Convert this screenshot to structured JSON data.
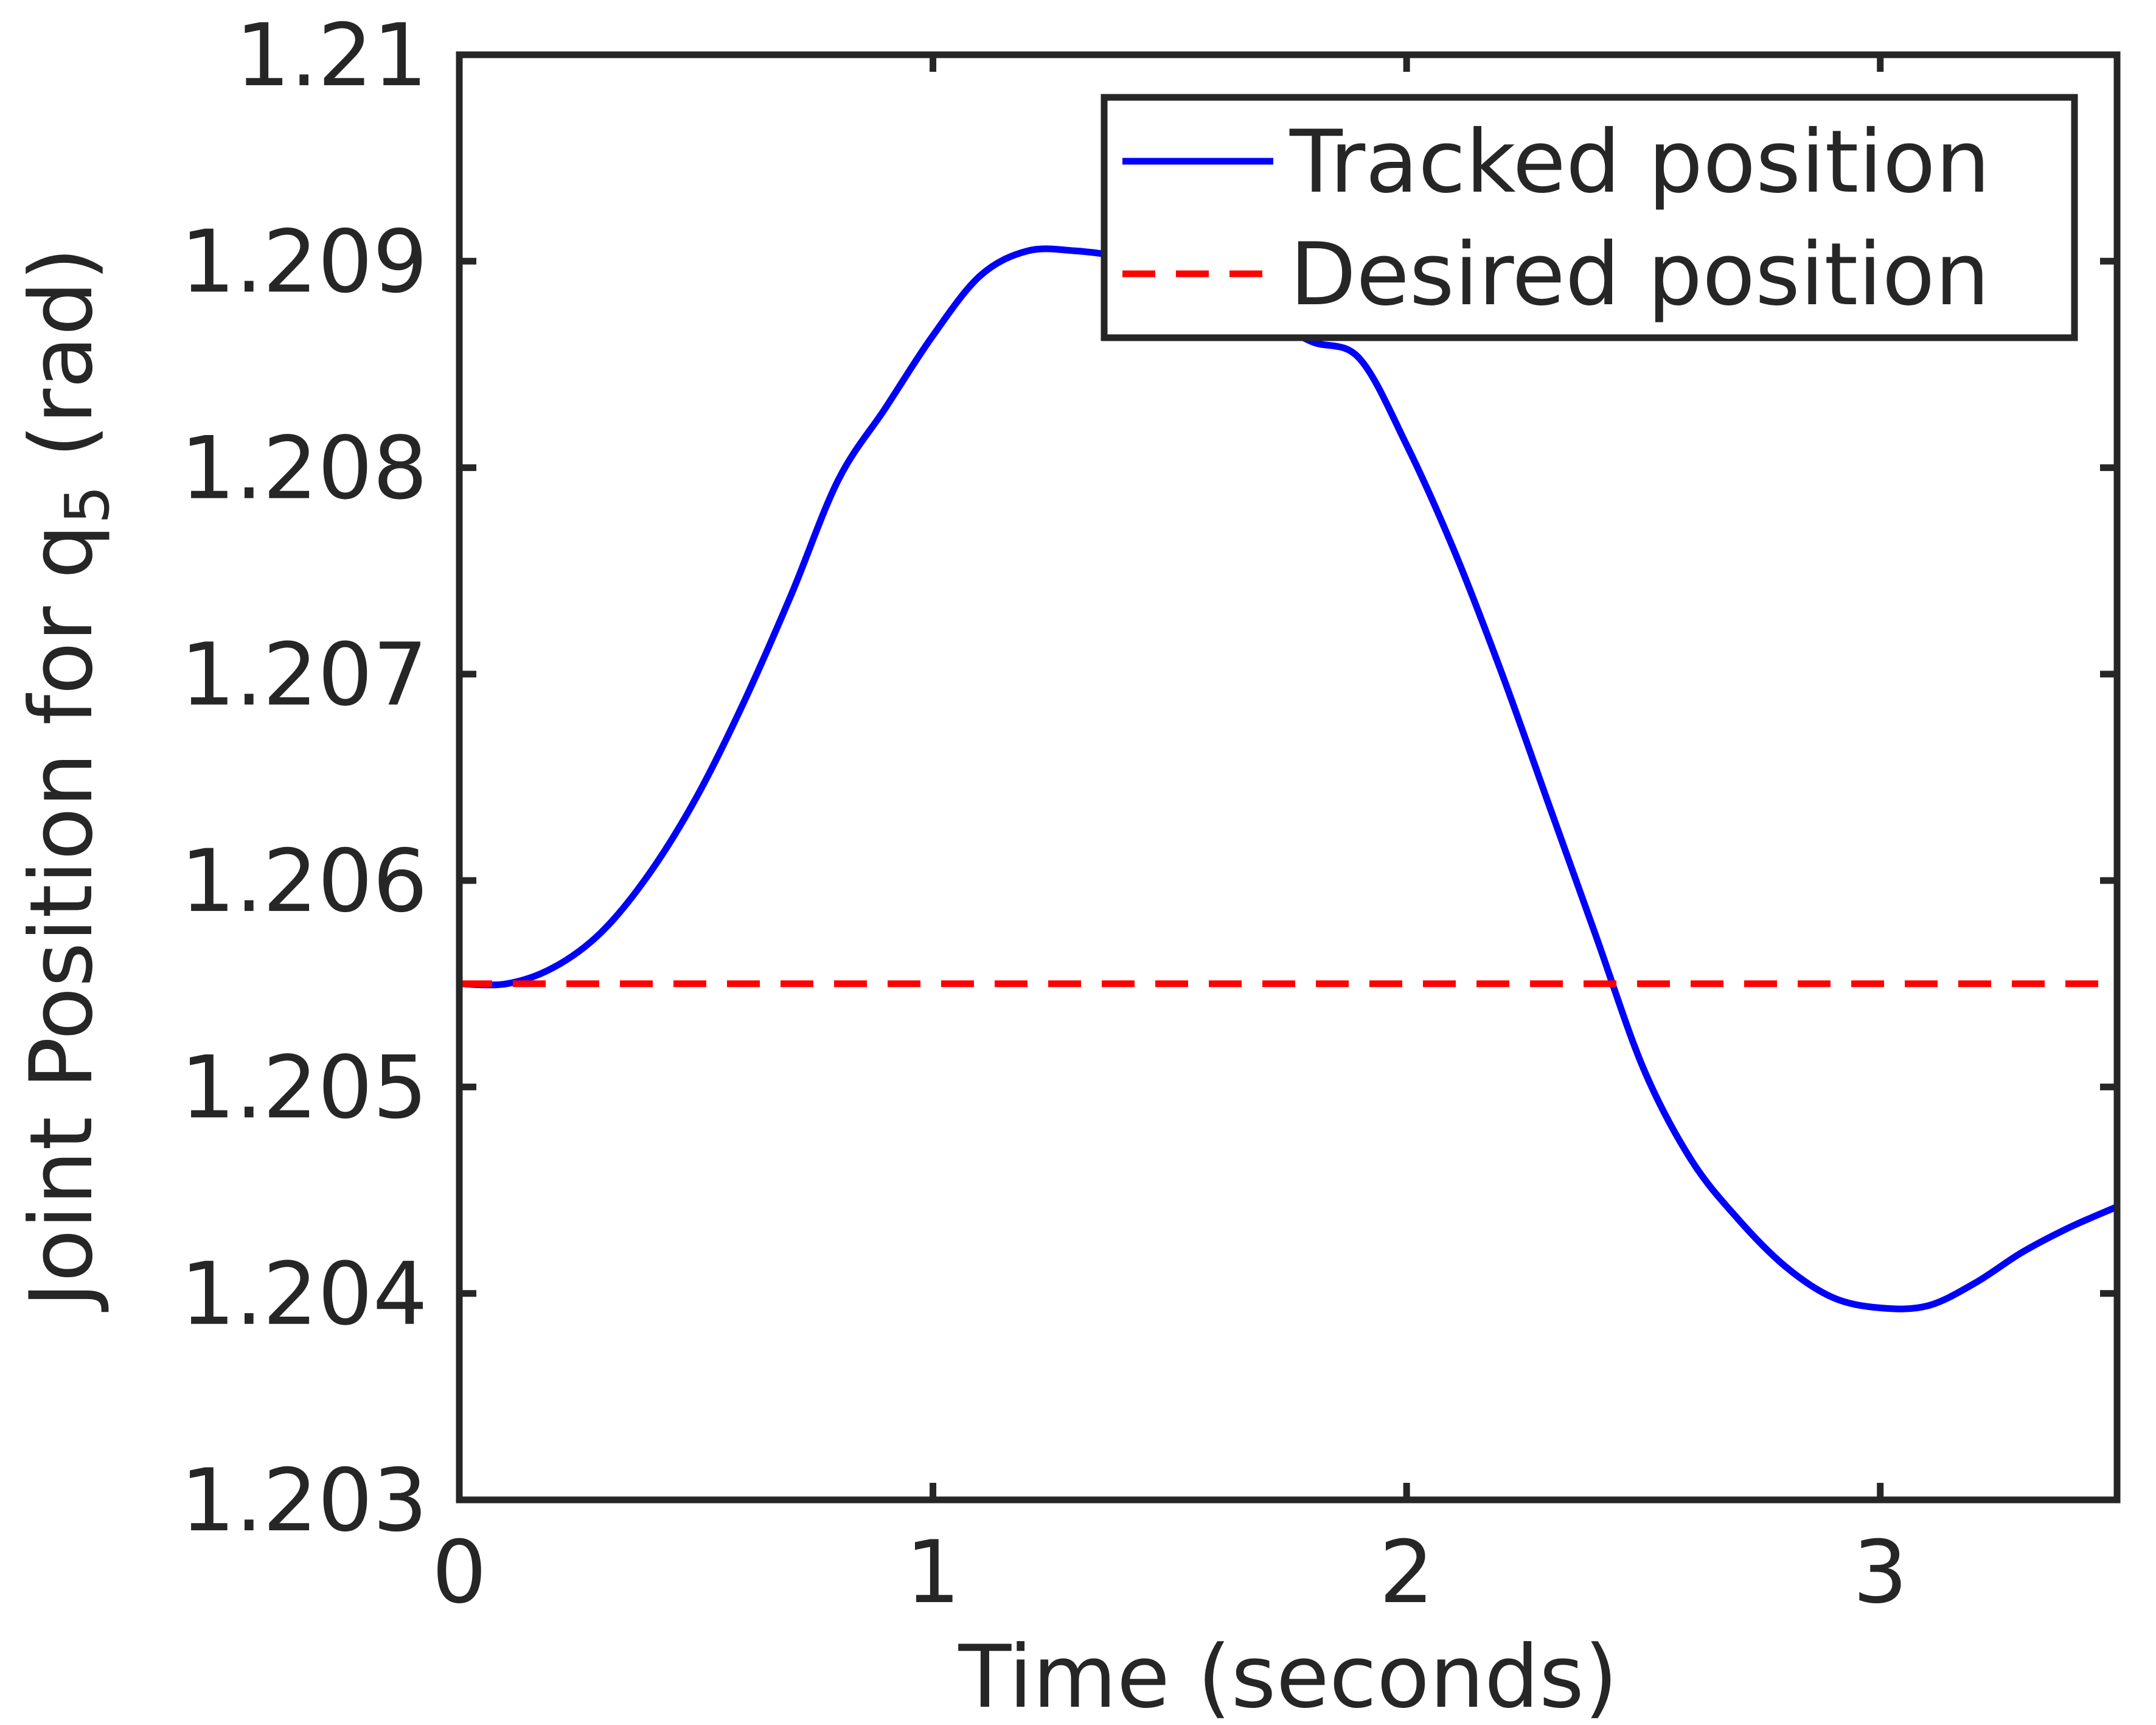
{
  "chart_data": {
    "type": "line",
    "xlabel": "Time (seconds)",
    "ylabel": {
      "main": "Joint Position for q",
      "subscript": "5",
      "suffix": " (rad)"
    },
    "xlim": [
      0,
      3.5
    ],
    "ylim": [
      1.203,
      1.21
    ],
    "xticks": [
      0,
      1,
      2,
      3
    ],
    "xtick_labels": [
      "0",
      "1",
      "2",
      "3"
    ],
    "yticks": [
      1.203,
      1.204,
      1.205,
      1.206,
      1.207,
      1.208,
      1.209,
      1.21
    ],
    "ytick_labels": [
      "1.203",
      "1.204",
      "1.205",
      "1.206",
      "1.207",
      "1.208",
      "1.209",
      "1.21"
    ],
    "grid": false,
    "legend_position": "top-right",
    "series": [
      {
        "name": "Tracked position",
        "color": "#0000ff",
        "style": "solid",
        "x": [
          0,
          0.1,
          0.2,
          0.3,
          0.4,
          0.5,
          0.6,
          0.7,
          0.8,
          0.9,
          1.0,
          1.1,
          1.2,
          1.3,
          1.4,
          1.5,
          1.6,
          1.7,
          1.8,
          1.9,
          2.0,
          2.1,
          2.2,
          2.3,
          2.4,
          2.5,
          2.6,
          2.7,
          2.8,
          2.9,
          3.0,
          3.1,
          3.2,
          3.3,
          3.4,
          3.5
        ],
        "y": [
          1.2055,
          1.2055,
          1.20558,
          1.20575,
          1.20603,
          1.2064,
          1.20686,
          1.20738,
          1.20794,
          1.20829,
          1.20864,
          1.20893,
          1.20905,
          1.20905,
          1.20902,
          1.20896,
          1.20886,
          1.20873,
          1.20861,
          1.20853,
          1.20811,
          1.2076,
          1.20701,
          1.20637,
          1.20573,
          1.20509,
          1.20465,
          1.20436,
          1.20413,
          1.20398,
          1.20393,
          1.20394,
          1.20405,
          1.2042,
          1.20432,
          1.20442
        ]
      },
      {
        "name": "Desired position",
        "color": "#ff0000",
        "style": "dashed",
        "x": [
          0,
          3.5
        ],
        "y": [
          1.2055,
          1.2055
        ]
      }
    ]
  }
}
